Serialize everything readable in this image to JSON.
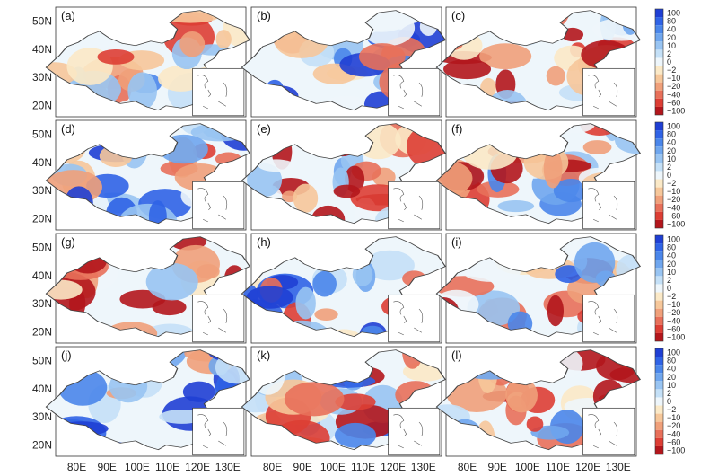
{
  "chart_data": {
    "type": "heatmap",
    "title": "",
    "panels": [
      "(a)",
      "(b)",
      "(c)",
      "(d)",
      "(e)",
      "(f)",
      "(g)",
      "(h)",
      "(i)",
      "(j)",
      "(k)",
      "(l)"
    ],
    "x_ticks": [
      "80E",
      "90E",
      "100E",
      "110E",
      "120E",
      "130E"
    ],
    "y_ticks": [
      "50N",
      "40N",
      "30N",
      "20N"
    ],
    "xlim": [
      73,
      136
    ],
    "ylim": [
      16,
      55
    ],
    "colorbar": {
      "labels": [
        "100",
        "80",
        "40",
        "20",
        "10",
        "2",
        "0",
        "−2",
        "−10",
        "−20",
        "−40",
        "−60",
        "−100"
      ],
      "levels": [
        100,
        80,
        40,
        20,
        10,
        2,
        0,
        -2,
        -10,
        -20,
        -40,
        -60,
        -100
      ],
      "colors": [
        "#1f3fd4",
        "#2f63e6",
        "#4a86ea",
        "#6fa6ee",
        "#98c4f2",
        "#c4e0f7",
        "#eef6fb",
        "#fbe9c7",
        "#f6c79a",
        "#f0a07a",
        "#e8705a",
        "#dd3e34",
        "#b3161c"
      ]
    }
  },
  "colors": {
    "frame": "#333333",
    "border": "#444444",
    "background": "#ffffff"
  },
  "icons": {
    "inset_map": "south-china-sea-inset-icon"
  }
}
